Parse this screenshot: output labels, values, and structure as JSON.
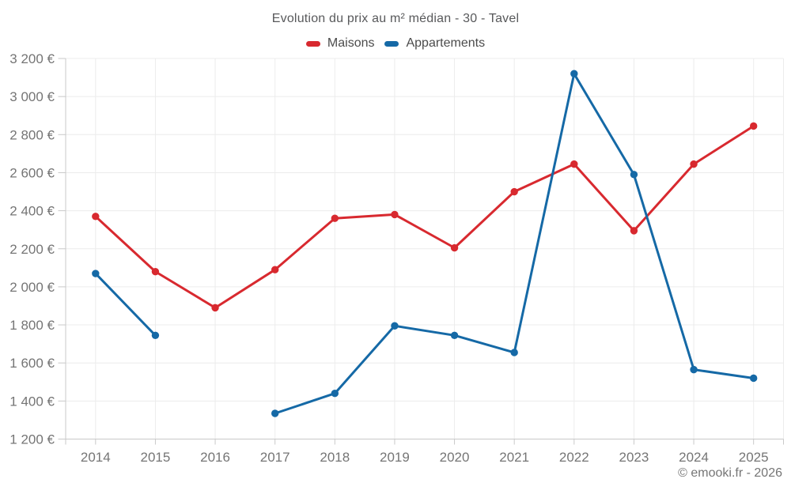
{
  "chart_data": {
    "type": "line",
    "title": "Evolution du prix au m² médian - 30 - Tavel",
    "x_labels": [
      "2014",
      "2015",
      "2016",
      "2017",
      "2018",
      "2019",
      "2020",
      "2021",
      "2022",
      "2023",
      "2024",
      "2025"
    ],
    "series": [
      {
        "name": "Maisons",
        "color": "#d8292f",
        "values": [
          2370,
          2080,
          1890,
          2090,
          2360,
          2380,
          2205,
          2500,
          2645,
          2295,
          2645,
          2845
        ]
      },
      {
        "name": "Appartements",
        "color": "#1569a6",
        "values": [
          2070,
          1745,
          null,
          1335,
          1440,
          1795,
          1745,
          1655,
          3120,
          2590,
          1565,
          1520
        ]
      }
    ],
    "ylim": [
      1200,
      3200
    ],
    "ytick_step": 200,
    "y_tick_labels": [
      "1 200 €",
      "1 400 €",
      "1 600 €",
      "1 800 €",
      "2 000 €",
      "2 200 €",
      "2 400 €",
      "2 600 €",
      "2 800 €",
      "3 000 €",
      "3 200 €"
    ],
    "grid": true,
    "legend_position": "top",
    "unit": "€"
  },
  "footer": {
    "credit": "© emooki.fr - 2026"
  },
  "colors": {
    "grid": "#ececec",
    "axis": "#c9c9c9",
    "tick_label": "#757575",
    "title_text": "#58595b",
    "legend_text": "#4b4b4b"
  }
}
